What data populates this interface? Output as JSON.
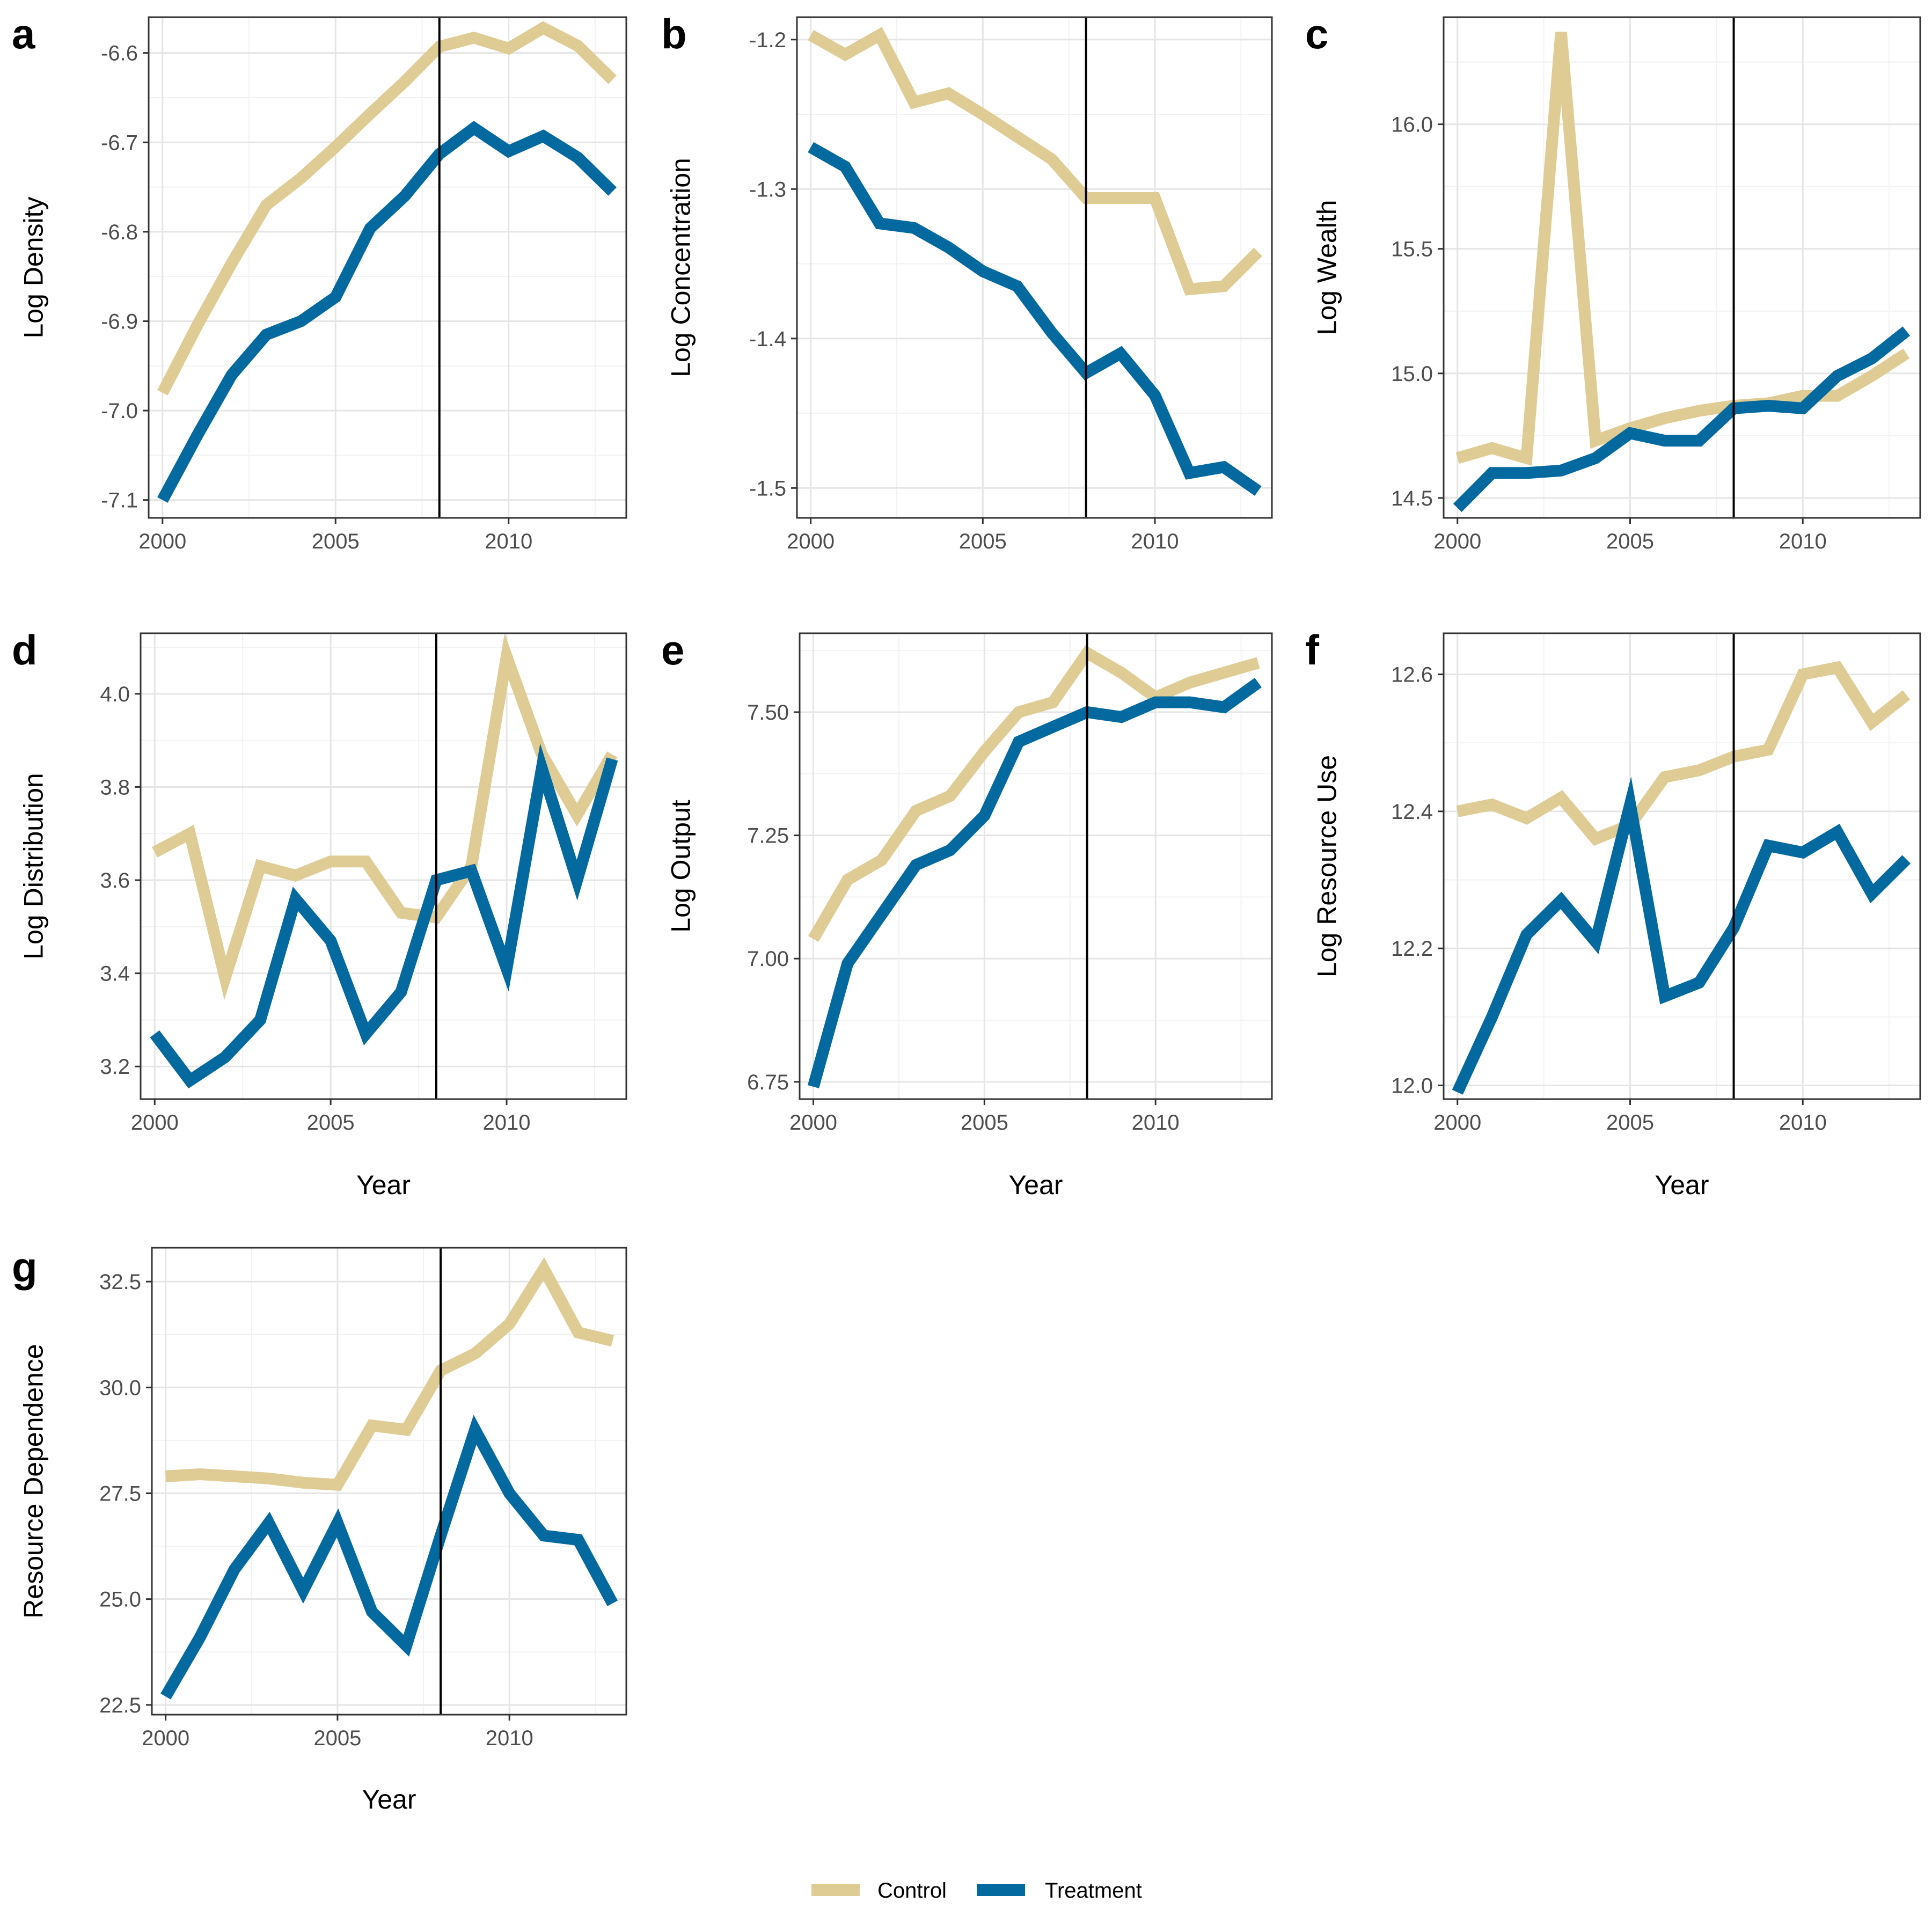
{
  "colors": {
    "control": "#dfcc94",
    "treatment": "#03699f",
    "grid_major": "#e5e5e5",
    "grid_minor": "#f2f2f2",
    "vline": "#000000"
  },
  "legend": {
    "items": [
      {
        "label": "Control",
        "color_key": "control"
      },
      {
        "label": "Treatment",
        "color_key": "treatment"
      }
    ]
  },
  "chart_data": [
    {
      "tag": "a",
      "type": "line",
      "xlabel": "",
      "ylabel": "Log Density",
      "xlim": [
        1999.6,
        2013.4
      ],
      "ylim": [
        -7.12,
        -6.56
      ],
      "xticks": [
        2000,
        2005,
        2010
      ],
      "yticks": [
        -7.1,
        -7.0,
        -6.9,
        -6.8,
        -6.7,
        -6.6
      ],
      "ytick_labels": [
        "-7.1",
        "-7.0",
        "-6.9",
        "-6.8",
        "-6.7",
        "-6.6"
      ],
      "vline": 2008,
      "x": [
        2000,
        2001,
        2002,
        2003,
        2004,
        2005,
        2006,
        2007,
        2008,
        2009,
        2010,
        2011,
        2012,
        2013
      ],
      "series": [
        {
          "name": "Control",
          "values": [
            -6.98,
            -6.905,
            -6.835,
            -6.77,
            -6.74,
            -6.705,
            -6.668,
            -6.632,
            -6.593,
            -6.583,
            -6.595,
            -6.572,
            -6.592,
            -6.63
          ]
        },
        {
          "name": "Treatment",
          "values": [
            -7.1,
            -7.028,
            -6.96,
            -6.915,
            -6.9,
            -6.873,
            -6.796,
            -6.76,
            -6.713,
            -6.684,
            -6.71,
            -6.693,
            -6.717,
            -6.755
          ]
        }
      ]
    },
    {
      "tag": "b",
      "type": "line",
      "xlabel": "",
      "ylabel": "Log Concentration",
      "xlim": [
        1999.6,
        2013.4
      ],
      "ylim": [
        -1.52,
        -1.185
      ],
      "xticks": [
        2000,
        2005,
        2010
      ],
      "yticks": [
        -1.5,
        -1.4,
        -1.3,
        -1.2
      ],
      "ytick_labels": [
        "-1.5",
        "-1.4",
        "-1.3",
        "-1.2"
      ],
      "vline": 2008,
      "x": [
        2000,
        2001,
        2002,
        2003,
        2004,
        2005,
        2006,
        2007,
        2008,
        2009,
        2010,
        2011,
        2012,
        2013
      ],
      "series": [
        {
          "name": "Control",
          "values": [
            -1.197,
            -1.21,
            -1.197,
            -1.242,
            -1.236,
            -1.25,
            -1.265,
            -1.28,
            -1.306,
            -1.306,
            -1.306,
            -1.367,
            -1.365,
            -1.342
          ]
        },
        {
          "name": "Treatment",
          "values": [
            -1.272,
            -1.285,
            -1.323,
            -1.326,
            -1.339,
            -1.355,
            -1.365,
            -1.396,
            -1.423,
            -1.41,
            -1.438,
            -1.49,
            -1.486,
            -1.502
          ]
        }
      ]
    },
    {
      "tag": "c",
      "type": "line",
      "xlabel": "",
      "ylabel": "Log Wealth",
      "xlim": [
        1999.6,
        2013.4
      ],
      "ylim": [
        14.42,
        16.43
      ],
      "xticks": [
        2000,
        2005,
        2010
      ],
      "yticks": [
        14.5,
        15.0,
        15.5,
        16.0
      ],
      "ytick_labels": [
        "14.5",
        "15.0",
        "15.5",
        "16.0"
      ],
      "vline": 2008,
      "x": [
        2000,
        2001,
        2002,
        2003,
        2004,
        2005,
        2006,
        2007,
        2008,
        2009,
        2010,
        2011,
        2012,
        2013
      ],
      "series": [
        {
          "name": "Control",
          "values": [
            14.66,
            14.7,
            14.66,
            16.37,
            14.73,
            14.78,
            14.82,
            14.85,
            14.87,
            14.88,
            14.91,
            14.91,
            14.99,
            15.08
          ]
        },
        {
          "name": "Treatment",
          "values": [
            14.46,
            14.6,
            14.6,
            14.61,
            14.66,
            14.76,
            14.73,
            14.73,
            14.86,
            14.87,
            14.86,
            14.99,
            15.06,
            15.17
          ]
        }
      ]
    },
    {
      "tag": "d",
      "type": "line",
      "xlabel": "Year",
      "ylabel": "Log Distribution",
      "xlim": [
        1999.6,
        2013.4
      ],
      "ylim": [
        3.13,
        4.13
      ],
      "xticks": [
        2000,
        2005,
        2010
      ],
      "yticks": [
        3.2,
        3.4,
        3.6,
        3.8,
        4.0
      ],
      "ytick_labels": [
        "3.2",
        "3.4",
        "3.6",
        "3.8",
        "4.0"
      ],
      "vline": 2008,
      "x": [
        2000,
        2001,
        2002,
        2003,
        2004,
        2005,
        2006,
        2007,
        2008,
        2009,
        2010,
        2011,
        2012,
        2013
      ],
      "series": [
        {
          "name": "Control",
          "values": [
            3.66,
            3.7,
            3.39,
            3.63,
            3.61,
            3.64,
            3.64,
            3.53,
            3.52,
            3.63,
            4.08,
            3.87,
            3.74,
            3.87
          ]
        },
        {
          "name": "Treatment",
          "values": [
            3.27,
            3.17,
            3.22,
            3.3,
            3.56,
            3.47,
            3.27,
            3.36,
            3.6,
            3.62,
            3.41,
            3.84,
            3.6,
            3.86
          ]
        }
      ]
    },
    {
      "tag": "e",
      "type": "line",
      "xlabel": "Year",
      "ylabel": "Log Output",
      "xlim": [
        1999.6,
        2013.4
      ],
      "ylim": [
        6.715,
        7.66
      ],
      "xticks": [
        2000,
        2005,
        2010
      ],
      "yticks": [
        6.75,
        7.0,
        7.25,
        7.5
      ],
      "ytick_labels": [
        "6.75",
        "7.00",
        "7.25",
        "7.50"
      ],
      "vline": 2008,
      "x": [
        2000,
        2001,
        2002,
        2003,
        2004,
        2005,
        2006,
        2007,
        2008,
        2009,
        2010,
        2011,
        2012,
        2013
      ],
      "series": [
        {
          "name": "Control",
          "values": [
            7.04,
            7.16,
            7.2,
            7.3,
            7.33,
            7.42,
            7.5,
            7.52,
            7.62,
            7.58,
            7.53,
            7.56,
            7.58,
            7.6
          ]
        },
        {
          "name": "Treatment",
          "values": [
            6.74,
            6.99,
            7.09,
            7.19,
            7.22,
            7.29,
            7.44,
            7.47,
            7.5,
            7.49,
            7.52,
            7.52,
            7.51,
            7.56
          ]
        }
      ]
    },
    {
      "tag": "f",
      "type": "line",
      "xlabel": "Year",
      "ylabel": "Log Resource Use",
      "xlim": [
        1999.6,
        2013.4
      ],
      "ylim": [
        11.98,
        12.66
      ],
      "xticks": [
        2000,
        2005,
        2010
      ],
      "yticks": [
        12.0,
        12.2,
        12.4,
        12.6
      ],
      "ytick_labels": [
        "12.0",
        "12.2",
        "12.4",
        "12.6"
      ],
      "vline": 2008,
      "x": [
        2000,
        2001,
        2002,
        2003,
        2004,
        2005,
        2006,
        2007,
        2008,
        2009,
        2010,
        2011,
        2012,
        2013
      ],
      "series": [
        {
          "name": "Control",
          "values": [
            12.4,
            12.41,
            12.39,
            12.42,
            12.36,
            12.38,
            12.45,
            12.46,
            12.48,
            12.49,
            12.6,
            12.61,
            12.53,
            12.57
          ]
        },
        {
          "name": "Treatment",
          "values": [
            11.99,
            12.1,
            12.22,
            12.27,
            12.21,
            12.41,
            12.13,
            12.15,
            12.23,
            12.35,
            12.34,
            12.37,
            12.28,
            12.33
          ]
        }
      ]
    },
    {
      "tag": "g",
      "type": "line",
      "xlabel": "Year",
      "ylabel": "Resource Dependence",
      "xlim": [
        1999.6,
        2013.4
      ],
      "ylim": [
        22.27,
        33.3
      ],
      "xticks": [
        2000,
        2005,
        2010
      ],
      "yticks": [
        22.5,
        25.0,
        27.5,
        30.0,
        32.5
      ],
      "ytick_labels": [
        "22.5",
        "25.0",
        "27.5",
        "30.0",
        "32.5"
      ],
      "vline": 2008,
      "x": [
        2000,
        2001,
        2002,
        2003,
        2004,
        2005,
        2006,
        2007,
        2008,
        2009,
        2010,
        2011,
        2012,
        2013
      ],
      "series": [
        {
          "name": "Control",
          "values": [
            27.9,
            27.95,
            27.9,
            27.85,
            27.75,
            27.7,
            29.1,
            29.0,
            30.4,
            30.8,
            31.5,
            32.8,
            31.3,
            31.1
          ]
        },
        {
          "name": "Treatment",
          "values": [
            22.7,
            24.1,
            25.7,
            26.8,
            25.2,
            26.8,
            24.7,
            23.9,
            26.5,
            29.0,
            27.5,
            26.5,
            26.4,
            24.9
          ]
        }
      ]
    }
  ]
}
